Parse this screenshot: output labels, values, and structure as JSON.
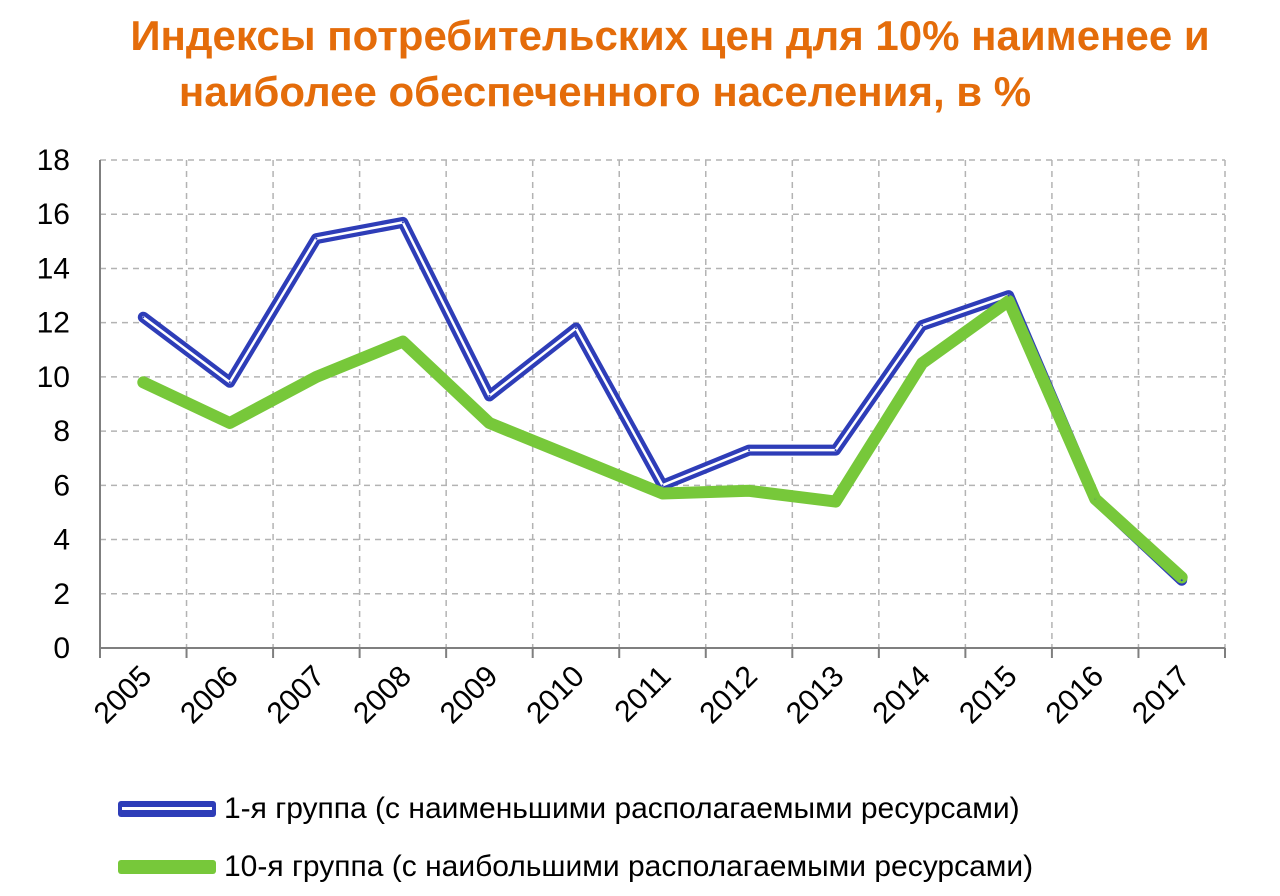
{
  "title_line1": "Индексы потребительских цен для 10% наименее и",
  "title_line2": "наиболее обеспеченного населения, в %",
  "chart_data": {
    "type": "line",
    "title": "Индексы потребительских цен для 10% наименее и наиболее обеспеченного населения, в %",
    "xlabel": "",
    "ylabel": "",
    "x": [
      "2005",
      "2006",
      "2007",
      "2008",
      "2009",
      "2010",
      "2011",
      "2012",
      "2013",
      "2014",
      "2015",
      "2016",
      "2017"
    ],
    "ylim": [
      0,
      18
    ],
    "yticks": [
      "0",
      "2",
      "4",
      "6",
      "8",
      "10",
      "12",
      "14",
      "16",
      "18"
    ],
    "grid": true,
    "legend_position": "bottom",
    "series": [
      {
        "name": "1-я группа (с наименьшими располагаемыми ресурсами)",
        "color": "#2E3DB8",
        "values": [
          12.2,
          9.8,
          15.1,
          15.7,
          9.3,
          11.8,
          6.0,
          7.3,
          7.3,
          11.9,
          13.0,
          5.5,
          2.5
        ]
      },
      {
        "name": "10-я группа (с наибольшими располагаемыми ресурсами)",
        "color": "#77C83A",
        "values": [
          9.8,
          8.3,
          10.0,
          11.3,
          8.3,
          7.0,
          5.7,
          5.8,
          5.4,
          10.5,
          12.8,
          5.5,
          2.6
        ]
      }
    ]
  }
}
